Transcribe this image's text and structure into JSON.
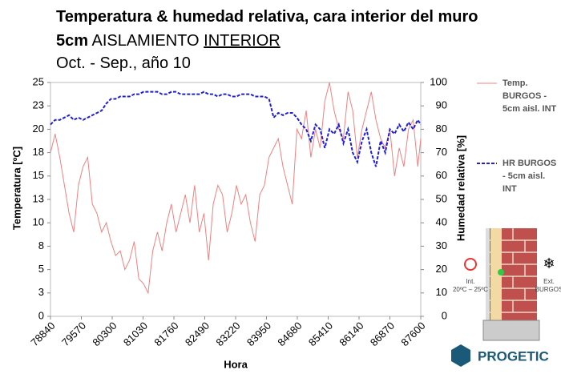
{
  "chart_data": {
    "type": "line",
    "title": "Temperatura & humedad relativa, cara interior del muro",
    "subtitle_parts": [
      "5cm",
      "AISLAMIENTO",
      "INTERIOR"
    ],
    "period": "Oct. - Sep., año 10",
    "xlabel": "Hora",
    "ylabel": "Temperatura [ºC]",
    "y2label": "Humedad relativa [%]",
    "xlim": [
      78840,
      87600
    ],
    "xticks": [
      78840,
      79570,
      80300,
      81030,
      81760,
      82490,
      83220,
      83950,
      84680,
      85410,
      86140,
      86870,
      87600
    ],
    "ylim": [
      0,
      25
    ],
    "yticks": [
      0,
      {
        "value": 2.5,
        "label": "3"
      },
      5,
      {
        "value": 7.5,
        "label": "8"
      },
      10,
      {
        "value": 12.5,
        "label": "13"
      },
      15,
      {
        "value": 17.5,
        "label": "18"
      },
      20,
      {
        "value": 22.5,
        "label": "23"
      },
      25
    ],
    "y2lim": [
      0,
      100
    ],
    "y2ticks": [
      0,
      10,
      20,
      30,
      40,
      50,
      60,
      70,
      80,
      90,
      100
    ],
    "x": [
      78840,
      78950,
      79060,
      79170,
      79280,
      79390,
      79500,
      79610,
      79720,
      79830,
      79940,
      80050,
      80160,
      80270,
      80380,
      80490,
      80600,
      80710,
      80820,
      80930,
      81040,
      81150,
      81260,
      81370,
      81480,
      81590,
      81700,
      81810,
      81920,
      82030,
      82140,
      82250,
      82360,
      82470,
      82580,
      82690,
      82800,
      82910,
      83020,
      83130,
      83240,
      83350,
      83460,
      83570,
      83680,
      83790,
      83900,
      84010,
      84120,
      84230,
      84340,
      84450,
      84560,
      84670,
      84780,
      84890,
      85000,
      85110,
      85220,
      85330,
      85440,
      85550,
      85660,
      85770,
      85880,
      85990,
      86100,
      86210,
      86320,
      86430,
      86540,
      86650,
      86760,
      86870,
      86980,
      87090,
      87200,
      87310,
      87420,
      87530,
      87600
    ],
    "series": [
      {
        "name": "Temp. BURGOS - 5cm aisl. INT",
        "color": "#f08080",
        "dash": false,
        "values": [
          17.5,
          19.5,
          17,
          14,
          11,
          9,
          14,
          16,
          17,
          12,
          11,
          9,
          10,
          8,
          6.5,
          7,
          5,
          6,
          8,
          4,
          3.5,
          2.5,
          7,
          9,
          7,
          10,
          12,
          9,
          11,
          13,
          10,
          14,
          9,
          11,
          6,
          12,
          14,
          13,
          9,
          11,
          14,
          12,
          13,
          10,
          8,
          13,
          14,
          17,
          18,
          19,
          16,
          14,
          12,
          20,
          19,
          22,
          17,
          20,
          18,
          23,
          25,
          22,
          20,
          19,
          24,
          22,
          17,
          20,
          22,
          24,
          21,
          19,
          18,
          20,
          15,
          18,
          16,
          20,
          21,
          16,
          19
        ]
      },
      {
        "name": "HR BURGOS - 5cm aisl. INT",
        "color": "#1f1fd6",
        "dash": true,
        "axis": "y2",
        "values": [
          82,
          84,
          84,
          85,
          86,
          84,
          85,
          84,
          85,
          86,
          87,
          88,
          91,
          93,
          93,
          94,
          94,
          94,
          95,
          95,
          96,
          96,
          96,
          96,
          95,
          95,
          96,
          96,
          95,
          95,
          95,
          95,
          95,
          96,
          95,
          95,
          94,
          95,
          95,
          94,
          94,
          95,
          95,
          95,
          94,
          94,
          94,
          93,
          85,
          87,
          86,
          87,
          87,
          85,
          82,
          80,
          75,
          82,
          80,
          72,
          80,
          78,
          82,
          74,
          80,
          70,
          66,
          75,
          80,
          70,
          64,
          75,
          70,
          80,
          78,
          82,
          79,
          83,
          80,
          84,
          82
        ]
      }
    ],
    "annotations": [
      "Int.",
      "20ºC – 25ºC",
      "Ext.",
      "BURGOS",
      "PROGETIC"
    ]
  }
}
